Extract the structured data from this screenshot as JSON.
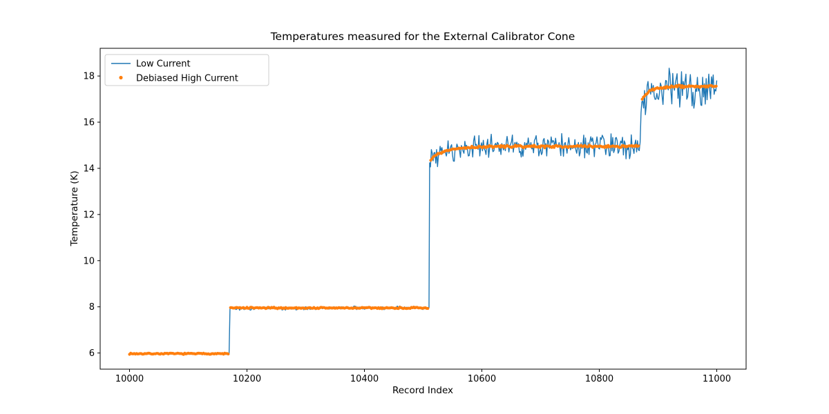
{
  "figure": {
    "background": "#ffffff",
    "frame_color": "#000000"
  },
  "chart_data": {
    "type": "line",
    "title": "Temperatures measured for the External Calibrator Cone",
    "xlabel": "Record Index",
    "ylabel": "Temperature (K)",
    "xlim": [
      9950,
      11050
    ],
    "ylim": [
      5.3,
      19.2
    ],
    "xticks": [
      10000,
      10200,
      10400,
      10600,
      10800,
      11000
    ],
    "yticks": [
      6,
      8,
      10,
      12,
      14,
      16,
      18
    ],
    "grid": false,
    "legend_position": "upper left",
    "series": [
      {
        "name": "Low Current",
        "color": "#1f77b4",
        "style": "line",
        "segments": [
          {
            "x": [
              10000,
              10170
            ],
            "y_start": 5.97,
            "y_end": 5.97,
            "tau": 0,
            "noise": 0.02
          },
          {
            "x": [
              10171,
              10510
            ],
            "y_start": 7.93,
            "y_end": 7.96,
            "tau": 0,
            "noise": 0.045
          },
          {
            "x": [
              10511,
              10870
            ],
            "y_start": 14.3,
            "y_end": 14.95,
            "tau": 28,
            "noise": 0.3
          },
          {
            "x": [
              10871,
              11000
            ],
            "y_start": 16.95,
            "y_end": 17.5,
            "tau": 15,
            "noise": 0.5
          }
        ]
      },
      {
        "name": "Debiased High Current",
        "color": "#ff7f0e",
        "style": "dots",
        "segments": [
          {
            "x": [
              10000,
              10168
            ],
            "y_start": 5.97,
            "y_end": 5.97,
            "tau": 0,
            "noise": 0.015
          },
          {
            "x": [
              10172,
              10509
            ],
            "y_start": 7.95,
            "y_end": 7.95,
            "tau": 0,
            "noise": 0.02
          },
          {
            "x": [
              10513,
              10868
            ],
            "y_start": 14.38,
            "y_end": 14.95,
            "tau": 26,
            "noise": 0.03
          },
          {
            "x": [
              10873,
              11000
            ],
            "y_start": 17.0,
            "y_end": 17.55,
            "tau": 14,
            "noise": 0.035
          }
        ]
      }
    ]
  }
}
